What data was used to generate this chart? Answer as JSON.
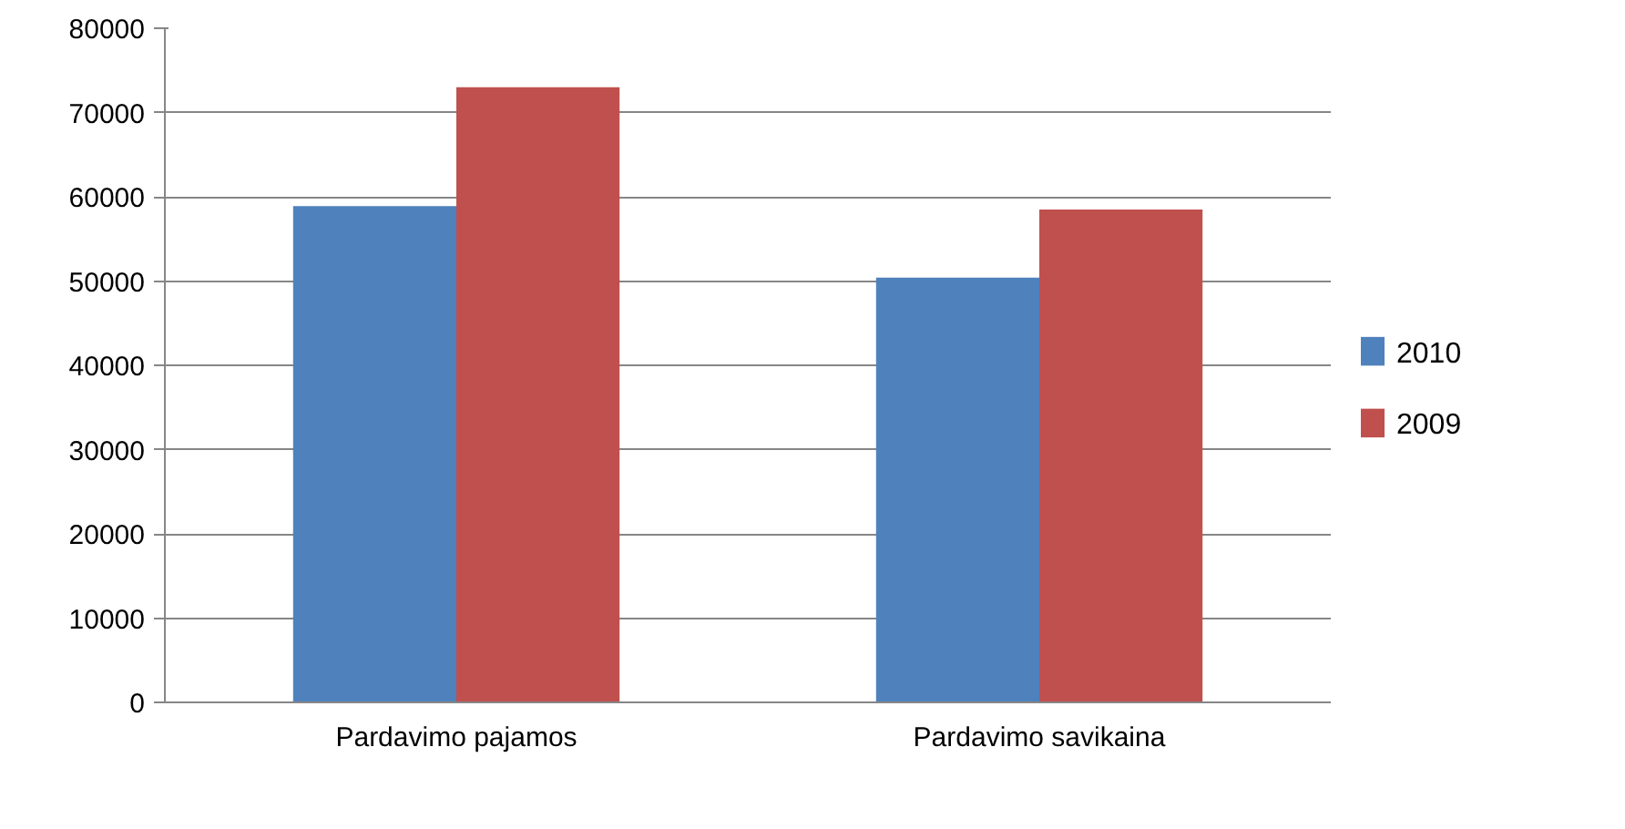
{
  "chart_data": {
    "type": "bar",
    "categories": [
      "Pardavimo pajamos",
      "Pardavimo savikaina"
    ],
    "series": [
      {
        "name": "2010",
        "color": "#4f81bd",
        "values": [
          58900,
          50400
        ]
      },
      {
        "name": "2009",
        "color": "#c0504d",
        "values": [
          73000,
          58500
        ]
      }
    ],
    "ylim": [
      0,
      80000
    ],
    "yticks": [
      0,
      10000,
      20000,
      30000,
      40000,
      50000,
      60000,
      70000,
      80000
    ],
    "grid": "y",
    "legend": "right"
  }
}
